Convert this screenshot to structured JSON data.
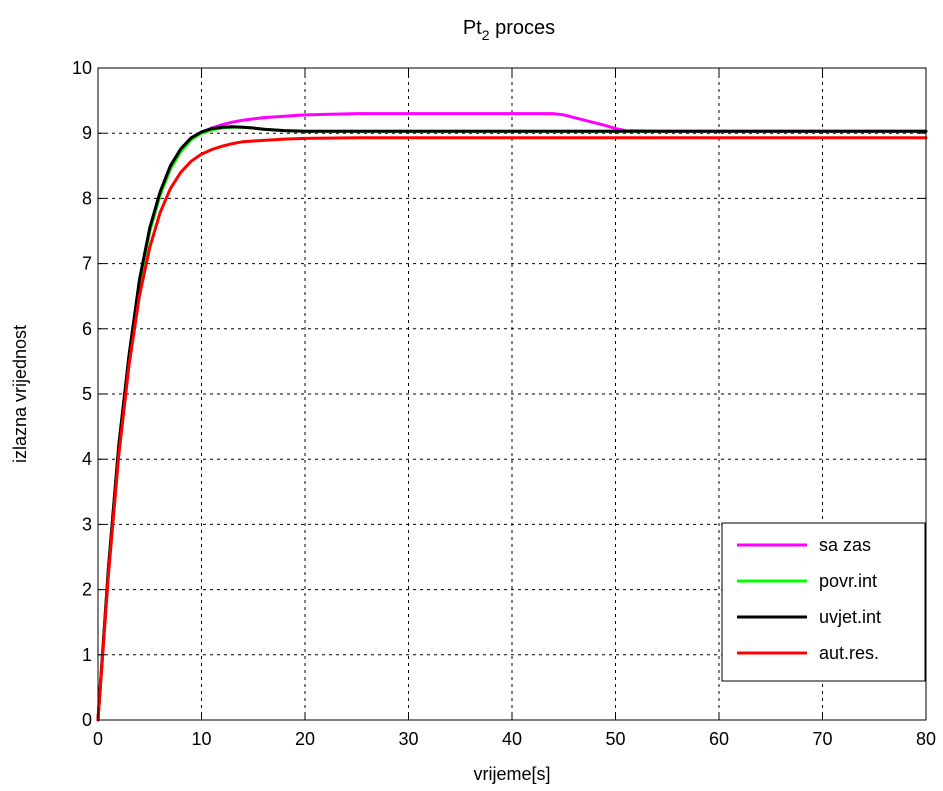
{
  "chart_data": {
    "type": "line",
    "title": "Pt",
    "title_sub": "2",
    "title_rest": " proces",
    "xlabel": "vrijeme[s]",
    "ylabel": "izlazna vrijednost",
    "xlim": [
      0,
      80
    ],
    "ylim": [
      0,
      10
    ],
    "x_ticks": [
      "0",
      "10",
      "20",
      "30",
      "40",
      "50",
      "60",
      "70",
      "80"
    ],
    "y_ticks": [
      "0",
      "1",
      "2",
      "3",
      "4",
      "5",
      "6",
      "7",
      "8",
      "9",
      "10"
    ],
    "grid": true,
    "legend_position": "bottom-right",
    "series": [
      {
        "name": "sa zas",
        "color": "#ff00ff",
        "x": [
          0,
          1,
          2,
          3,
          4,
          5,
          6,
          7,
          8,
          9,
          10,
          11,
          12,
          13,
          14,
          15,
          16,
          18,
          20,
          25,
          30,
          35,
          40,
          44,
          45,
          47,
          49,
          50,
          51,
          55,
          60,
          70,
          80
        ],
        "y": [
          0,
          2.3,
          4.2,
          5.6,
          6.7,
          7.5,
          8.05,
          8.45,
          8.72,
          8.9,
          9.01,
          9.08,
          9.13,
          9.17,
          9.2,
          9.22,
          9.24,
          9.26,
          9.28,
          9.3,
          9.3,
          9.3,
          9.3,
          9.3,
          9.28,
          9.2,
          9.12,
          9.07,
          9.04,
          9.03,
          9.03,
          9.03,
          9.03
        ]
      },
      {
        "name": "povr.int",
        "color": "#00ff00",
        "x": [
          0,
          1,
          2,
          3,
          4,
          5,
          6,
          7,
          8,
          9,
          10,
          11,
          12,
          13,
          14,
          15,
          16,
          18,
          20,
          25,
          30,
          40,
          50,
          60,
          70,
          80
        ],
        "y": [
          0,
          2.3,
          4.2,
          5.6,
          6.7,
          7.5,
          8.05,
          8.45,
          8.72,
          8.9,
          9.0,
          9.05,
          9.08,
          9.09,
          9.09,
          9.08,
          9.06,
          9.04,
          9.03,
          9.03,
          9.03,
          9.03,
          9.03,
          9.03,
          9.03,
          9.03
        ]
      },
      {
        "name": "uvjet.int",
        "color": "#000000",
        "x": [
          0,
          1,
          2,
          3,
          4,
          5,
          6,
          7,
          8,
          9,
          10,
          11,
          12,
          13,
          14,
          15,
          16,
          18,
          20,
          25,
          30,
          40,
          50,
          60,
          70,
          80
        ],
        "y": [
          0,
          2.3,
          4.2,
          5.6,
          6.75,
          7.55,
          8.1,
          8.5,
          8.76,
          8.93,
          9.02,
          9.07,
          9.09,
          9.1,
          9.09,
          9.08,
          9.06,
          9.04,
          9.03,
          9.03,
          9.03,
          9.03,
          9.03,
          9.03,
          9.03,
          9.03
        ]
      },
      {
        "name": "aut.res.",
        "color": "#ff0000",
        "x": [
          0,
          1,
          2,
          3,
          4,
          5,
          6,
          7,
          8,
          9,
          10,
          11,
          12,
          13,
          14,
          15,
          16,
          18,
          20,
          25,
          30,
          40,
          50,
          60,
          70,
          80
        ],
        "y": [
          0,
          2.2,
          4.05,
          5.45,
          6.5,
          7.25,
          7.78,
          8.15,
          8.4,
          8.57,
          8.68,
          8.75,
          8.8,
          8.84,
          8.87,
          8.88,
          8.89,
          8.91,
          8.92,
          8.93,
          8.93,
          8.93,
          8.93,
          8.93,
          8.93,
          8.93
        ]
      }
    ]
  }
}
